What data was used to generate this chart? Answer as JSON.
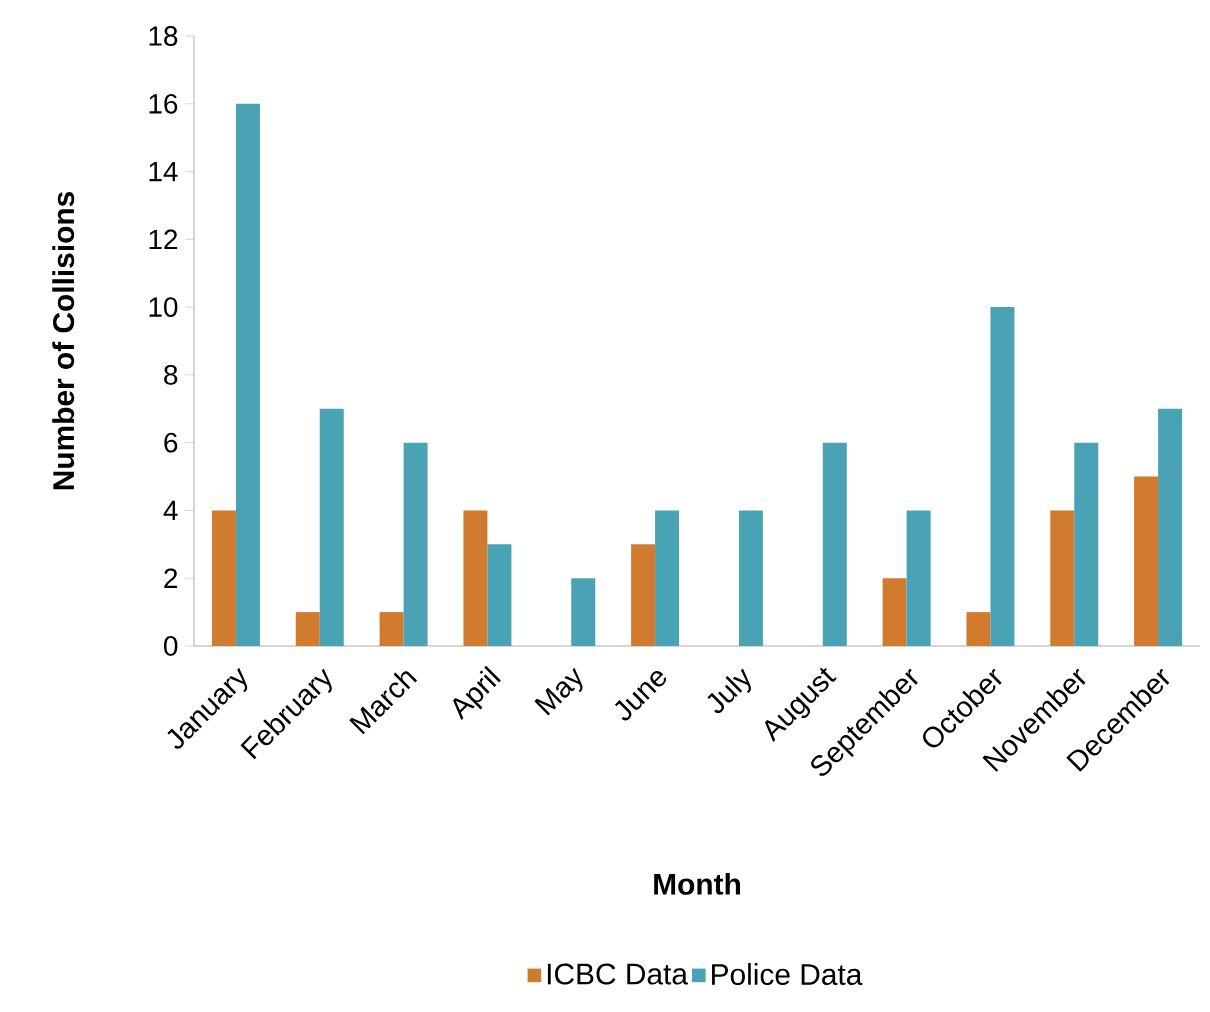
{
  "chart_data": {
    "type": "bar",
    "xlabel": "Month",
    "ylabel": "Number of Collisions",
    "categories": [
      "January",
      "February",
      "March",
      "April",
      "May",
      "June",
      "July",
      "August",
      "September",
      "October",
      "November",
      "December"
    ],
    "series": [
      {
        "name": "ICBC Data",
        "color": "#d17b2f",
        "values": [
          4,
          1,
          1,
          4,
          0,
          3,
          0,
          0,
          2,
          1,
          4,
          5
        ]
      },
      {
        "name": "Police Data",
        "color": "#4aa3b5",
        "values": [
          16,
          7,
          6,
          3,
          2,
          4,
          4,
          6,
          4,
          10,
          6,
          7
        ]
      }
    ],
    "ylim": [
      0,
      18
    ],
    "yticks": [
      0,
      2,
      4,
      6,
      8,
      10,
      12,
      14,
      16,
      18
    ],
    "legend": "bottom",
    "grid": false
  }
}
